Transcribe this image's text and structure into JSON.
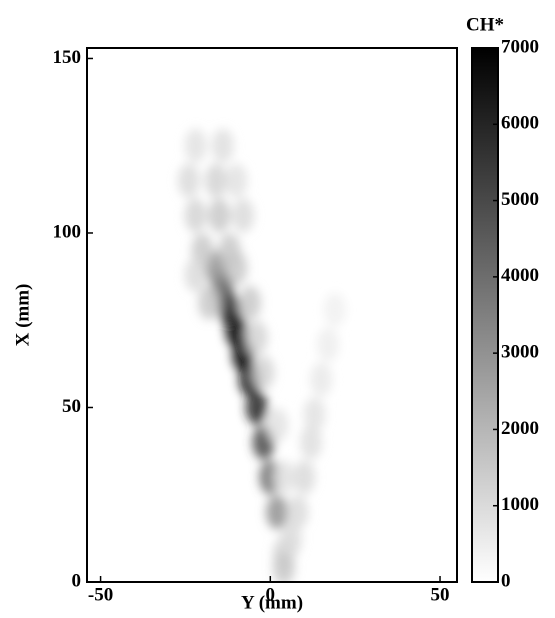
{
  "chart_data": {
    "type": "heatmap",
    "x_label": "Y (mm)",
    "y_label": "X (mm)",
    "colorbar_label": "CH*",
    "xlim": [
      -54,
      55
    ],
    "xticks": [
      -50,
      0,
      50
    ],
    "ylim": [
      0,
      153
    ],
    "yticks": [
      0,
      50,
      100,
      150
    ],
    "clim": [
      0,
      7000
    ],
    "cticks": [
      0,
      1000,
      2000,
      3000,
      4000,
      5000,
      6000,
      7000
    ],
    "colormap": [
      "#ffffff",
      "#000000"
    ],
    "x": [
      2,
      0,
      -2,
      -4,
      -6,
      -8,
      -10,
      -12,
      -14,
      -16,
      -20,
      -12,
      -22,
      -15,
      -8,
      -24,
      -16,
      -10,
      -22,
      -14,
      -10,
      -6,
      -18,
      -4,
      -2,
      2,
      4,
      -22,
      4,
      4,
      6,
      8,
      10,
      12,
      13,
      15,
      17,
      19
    ],
    "y": [
      20,
      30,
      40,
      50,
      58,
      65,
      72,
      78,
      84,
      90,
      95,
      95,
      105,
      105,
      105,
      115,
      115,
      115,
      125,
      125,
      90,
      80,
      80,
      70,
      60,
      45,
      30,
      88,
      8,
      4,
      12,
      20,
      30,
      40,
      48,
      58,
      68,
      78
    ],
    "values": [
      3000,
      4000,
      5000,
      6000,
      6500,
      7000,
      7000,
      6000,
      4500,
      3000,
      1500,
      1500,
      1200,
      1500,
      1000,
      1000,
      1200,
      800,
      800,
      900,
      1500,
      1500,
      1500,
      1200,
      1200,
      800,
      800,
      1000,
      1200,
      1500,
      1000,
      1000,
      1000,
      900,
      800,
      600,
      500,
      400
    ]
  }
}
